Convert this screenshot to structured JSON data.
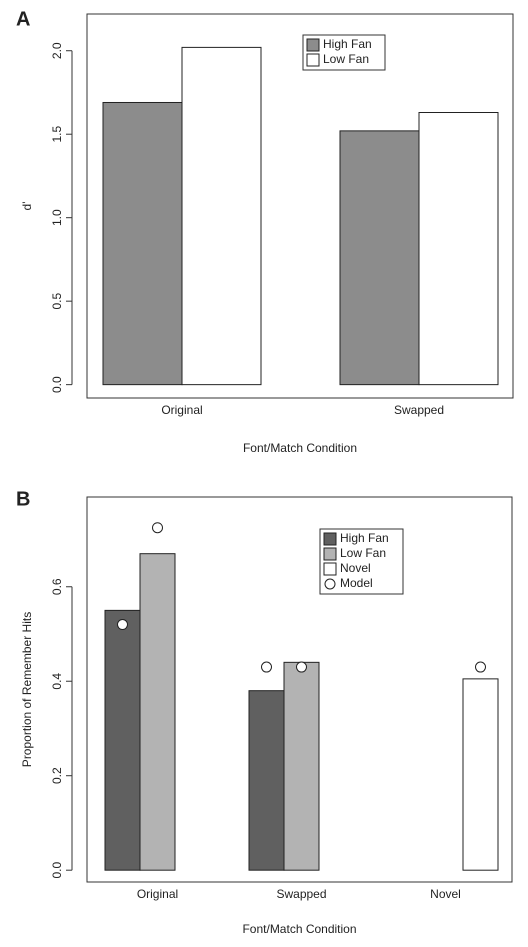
{
  "chart_data": [
    {
      "type": "bar",
      "panel": "A",
      "xlabel": "Font/Match Condition",
      "ylabel": "d'",
      "categories": [
        "Original",
        "Swapped"
      ],
      "series": [
        {
          "name": "High Fan",
          "color": "#8c8c8c",
          "values": [
            1.69,
            1.52
          ]
        },
        {
          "name": "Low Fan",
          "color": "#ffffff",
          "values": [
            2.02,
            1.63
          ]
        }
      ],
      "ylim": [
        -0.08,
        2.22
      ],
      "yticks": [
        {
          "value": 0,
          "label": "0.0"
        },
        {
          "value": 0.5,
          "label": "0.5"
        },
        {
          "value": 1,
          "label": "1.0"
        },
        {
          "value": 1.5,
          "label": "1.5"
        },
        {
          "value": 2,
          "label": "2.0"
        }
      ]
    },
    {
      "type": "bar",
      "panel": "B",
      "xlabel": "Font/Match Condition",
      "ylabel": "Proportion of Remember Hits",
      "categories": [
        "Original",
        "Swapped",
        "Novel"
      ],
      "series": [
        {
          "name": "High Fan",
          "color": "#606060",
          "values": [
            0.55,
            0.38,
            null
          ]
        },
        {
          "name": "Low Fan",
          "color": "#b3b3b3",
          "values": [
            0.67,
            0.44,
            null
          ]
        },
        {
          "name": "Novel",
          "color": "#ffffff",
          "values": [
            null,
            null,
            0.405
          ]
        },
        {
          "name": "Model",
          "marker": "circle",
          "values": [
            [
              0.52,
              0.725,
              null
            ],
            [
              0.43,
              0.43,
              null
            ],
            [
              null,
              null,
              0.43
            ]
          ]
        }
      ],
      "ylim": [
        -0.025,
        0.79
      ],
      "yticks": [
        {
          "value": 0,
          "label": "0.0"
        },
        {
          "value": 0.2,
          "label": "0.2"
        },
        {
          "value": 0.4,
          "label": "0.4"
        },
        {
          "value": 0.6,
          "label": "0.6"
        }
      ]
    }
  ]
}
